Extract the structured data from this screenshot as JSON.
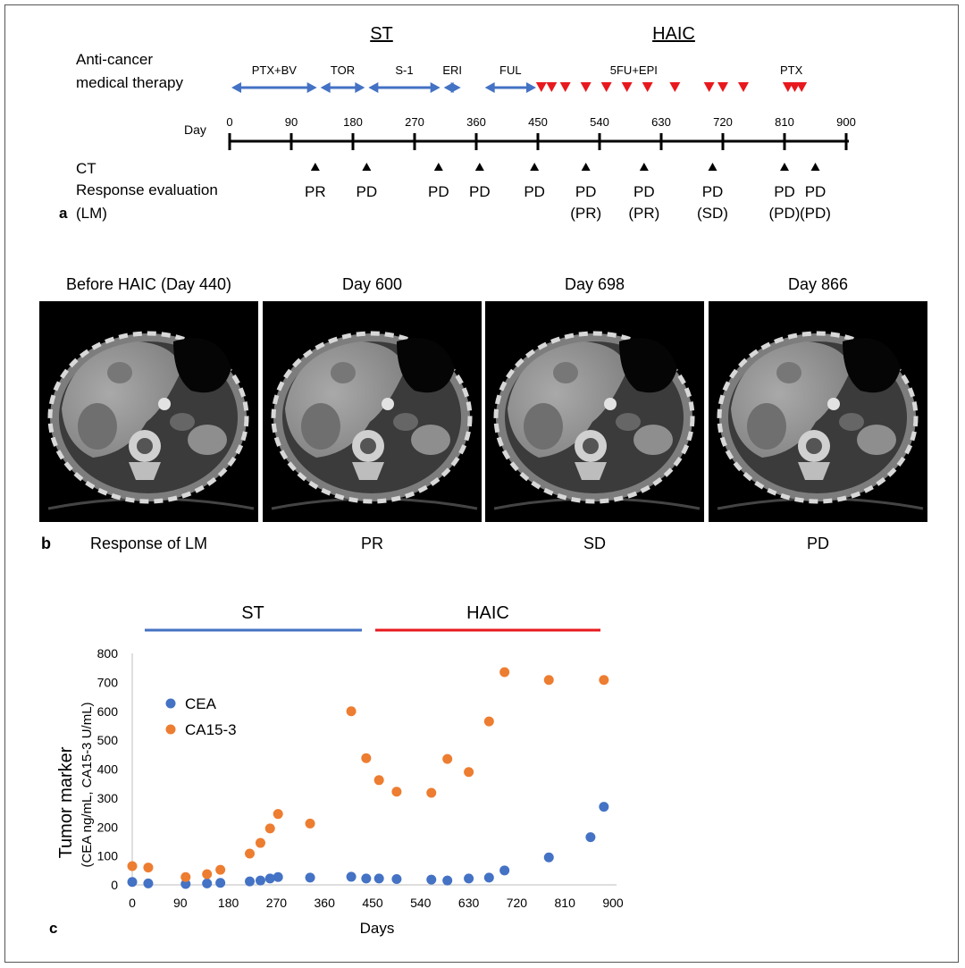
{
  "panel_a": {
    "label": "a",
    "group_st": "ST",
    "group_haic": "HAIC",
    "therapy_line1": "Anti-cancer",
    "therapy_line2": "medical therapy",
    "day_label": "Day",
    "ct_label": "CT",
    "response_line1": "Response evaluation",
    "response_line2": "(LM)",
    "axis_ticks": [
      "0",
      "90",
      "180",
      "270",
      "360",
      "450",
      "540",
      "630",
      "720",
      "810",
      "900"
    ],
    "regimens": [
      {
        "name": "PTX+BV",
        "start": 0,
        "end": 130
      },
      {
        "name": "TOR",
        "start": 130,
        "end": 200
      },
      {
        "name": "S-1",
        "start": 200,
        "end": 310
      },
      {
        "name": "ERI",
        "start": 310,
        "end": 340
      },
      {
        "name": "FUL",
        "start": 370,
        "end": 450
      }
    ],
    "haic_labels": [
      {
        "name": "5FU+EPI",
        "day": 590
      },
      {
        "name": "PTX",
        "day": 820
      }
    ],
    "haic_doses": [
      455,
      470,
      490,
      520,
      550,
      580,
      610,
      650,
      700,
      720,
      750,
      815,
      825,
      835
    ],
    "evaluations": [
      {
        "day": 125,
        "result": "PR",
        "paren": ""
      },
      {
        "day": 200,
        "result": "PD",
        "paren": ""
      },
      {
        "day": 305,
        "result": "PD",
        "paren": ""
      },
      {
        "day": 365,
        "result": "PD",
        "paren": ""
      },
      {
        "day": 445,
        "result": "PD",
        "paren": ""
      },
      {
        "day": 520,
        "result": "PD",
        "paren": "(PR)"
      },
      {
        "day": 605,
        "result": "PD",
        "paren": "(PR)"
      },
      {
        "day": 705,
        "result": "PD",
        "paren": "(SD)"
      },
      {
        "day": 810,
        "result": "PD",
        "paren": "(PD)"
      },
      {
        "day": 855,
        "result": "PD",
        "paren": "(PD)"
      }
    ],
    "colors": {
      "arrow": "#4472c4",
      "dose": "#e8191e",
      "line": "#000000"
    }
  },
  "panel_b": {
    "label": "b",
    "response_label": "Response of LM",
    "scans": [
      {
        "title": "Before HAIC (Day 440)",
        "response": "Response of LM"
      },
      {
        "title": "Day 600",
        "response": "PR"
      },
      {
        "title": "Day 698",
        "response": "SD"
      },
      {
        "title": "Day 866",
        "response": "PD"
      }
    ]
  },
  "panel_c": {
    "label": "c",
    "bar_st": "ST",
    "bar_haic": "HAIC",
    "colors": {
      "cea": "#4472c4",
      "ca153": "#ed7d31",
      "st_bar": "#4472c4",
      "haic_bar": "#e8191e"
    }
  },
  "chart_data": {
    "type": "scatter",
    "title": "",
    "xlabel": "Days",
    "ylabel": "Tumor marker",
    "ylabel_sub": "(CEA ng/mL, CA15-3 U/mL)",
    "xlim": [
      0,
      900
    ],
    "ylim": [
      0,
      800
    ],
    "xticks": [
      0,
      90,
      180,
      270,
      360,
      450,
      540,
      630,
      720,
      810,
      900
    ],
    "yticks": [
      0,
      100,
      200,
      300,
      400,
      500,
      600,
      700,
      800
    ],
    "legend_position": "upper-left",
    "series": [
      {
        "name": "CEA",
        "x": [
          0,
          30,
          100,
          140,
          165,
          220,
          240,
          258,
          273,
          333,
          410,
          438,
          462,
          495,
          560,
          590,
          630,
          668,
          697,
          780,
          858,
          883
        ],
        "y": [
          10,
          5,
          3,
          5,
          7,
          12,
          15,
          22,
          27,
          25,
          28,
          22,
          22,
          20,
          18,
          15,
          22,
          25,
          50,
          95,
          165,
          270
        ]
      },
      {
        "name": "CA15-3",
        "x": [
          0,
          30,
          100,
          140,
          165,
          220,
          240,
          258,
          273,
          333,
          410,
          438,
          462,
          495,
          560,
          590,
          630,
          668,
          697,
          780,
          883
        ],
        "y": [
          65,
          60,
          27,
          37,
          52,
          108,
          145,
          195,
          245,
          212,
          600,
          438,
          362,
          322,
          318,
          435,
          390,
          565,
          735,
          708,
          708
        ]
      }
    ]
  }
}
